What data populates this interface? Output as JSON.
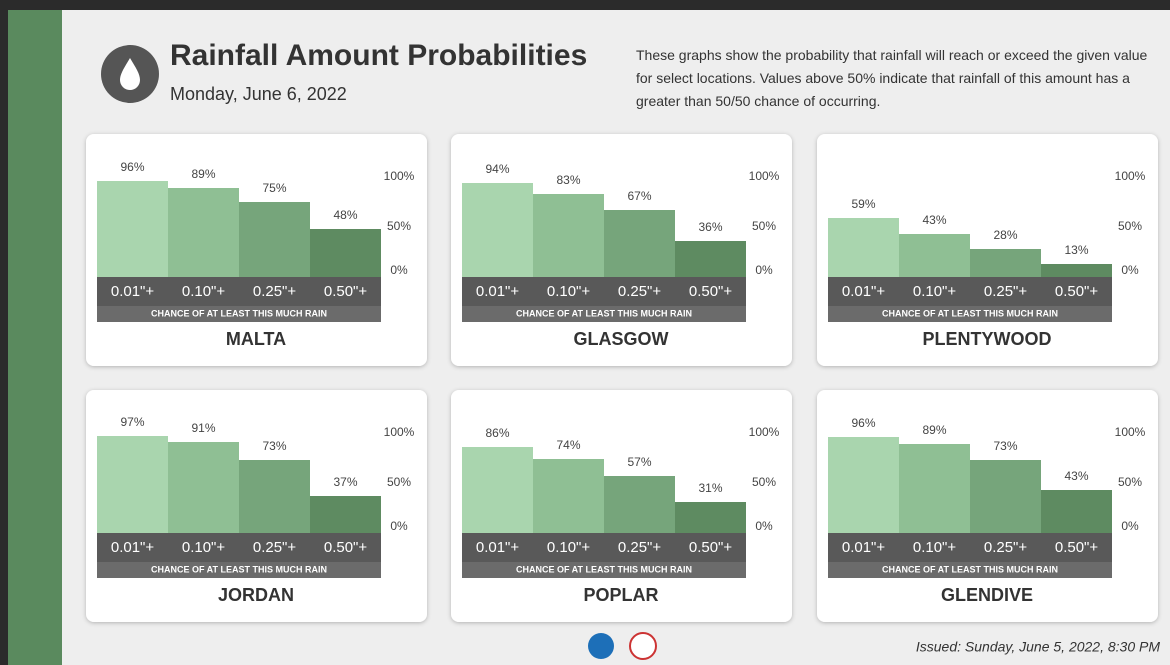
{
  "header": {
    "title": "Rainfall Amount Probabilities",
    "date": "Monday, June 6, 2022",
    "description": "These graphs show the probability that rainfall will reach or exceed the given value for select locations. Values above 50% indicate that rainfall of this amount has a greater than 50/50 chance of occurring."
  },
  "chart_data": [
    {
      "type": "bar",
      "title": "MALTA",
      "xlabel": "CHANCE OF AT LEAST THIS MUCH RAIN",
      "categories": [
        "0.01\"+",
        "0.10\"+",
        "0.25\"+",
        "0.50\"+"
      ],
      "values": [
        96,
        89,
        75,
        48
      ],
      "value_labels": [
        "96%",
        "89%",
        "75%",
        "48%"
      ],
      "colors": [
        "#a9d5ae",
        "#8fbf94",
        "#76a57b",
        "#5e8b61"
      ],
      "ylim": [
        0,
        100
      ],
      "yticks": [
        {
          "value": 0,
          "label": "0%"
        },
        {
          "value": 50,
          "label": "50%"
        },
        {
          "value": 100,
          "label": "100%"
        }
      ]
    },
    {
      "type": "bar",
      "title": "GLASGOW",
      "xlabel": "CHANCE OF AT LEAST THIS MUCH RAIN",
      "categories": [
        "0.01\"+",
        "0.10\"+",
        "0.25\"+",
        "0.50\"+"
      ],
      "values": [
        94,
        83,
        67,
        36
      ],
      "value_labels": [
        "94%",
        "83%",
        "67%",
        "36%"
      ],
      "colors": [
        "#a9d5ae",
        "#8fbf94",
        "#76a57b",
        "#5e8b61"
      ],
      "ylim": [
        0,
        100
      ],
      "yticks": [
        {
          "value": 0,
          "label": "0%"
        },
        {
          "value": 50,
          "label": "50%"
        },
        {
          "value": 100,
          "label": "100%"
        }
      ]
    },
    {
      "type": "bar",
      "title": "PLENTYWOOD",
      "xlabel": "CHANCE OF AT LEAST THIS MUCH RAIN",
      "categories": [
        "0.01\"+",
        "0.10\"+",
        "0.25\"+",
        "0.50\"+"
      ],
      "values": [
        59,
        43,
        28,
        13
      ],
      "value_labels": [
        "59%",
        "43%",
        "28%",
        "13%"
      ],
      "colors": [
        "#a9d5ae",
        "#8fbf94",
        "#76a57b",
        "#5e8b61"
      ],
      "ylim": [
        0,
        100
      ],
      "yticks": [
        {
          "value": 0,
          "label": "0%"
        },
        {
          "value": 50,
          "label": "50%"
        },
        {
          "value": 100,
          "label": "100%"
        }
      ]
    },
    {
      "type": "bar",
      "title": "JORDAN",
      "xlabel": "CHANCE OF AT LEAST THIS MUCH RAIN",
      "categories": [
        "0.01\"+",
        "0.10\"+",
        "0.25\"+",
        "0.50\"+"
      ],
      "values": [
        97,
        91,
        73,
        37
      ],
      "value_labels": [
        "97%",
        "91%",
        "73%",
        "37%"
      ],
      "colors": [
        "#a9d5ae",
        "#8fbf94",
        "#76a57b",
        "#5e8b61"
      ],
      "ylim": [
        0,
        100
      ],
      "yticks": [
        {
          "value": 0,
          "label": "0%"
        },
        {
          "value": 50,
          "label": "50%"
        },
        {
          "value": 100,
          "label": "100%"
        }
      ]
    },
    {
      "type": "bar",
      "title": "POPLAR",
      "xlabel": "CHANCE OF AT LEAST THIS MUCH RAIN",
      "categories": [
        "0.01\"+",
        "0.10\"+",
        "0.25\"+",
        "0.50\"+"
      ],
      "values": [
        86,
        74,
        57,
        31
      ],
      "value_labels": [
        "86%",
        "74%",
        "57%",
        "31%"
      ],
      "colors": [
        "#a9d5ae",
        "#8fbf94",
        "#76a57b",
        "#5e8b61"
      ],
      "ylim": [
        0,
        100
      ],
      "yticks": [
        {
          "value": 0,
          "label": "0%"
        },
        {
          "value": 50,
          "label": "50%"
        },
        {
          "value": 100,
          "label": "100%"
        }
      ]
    },
    {
      "type": "bar",
      "title": "GLENDIVE",
      "xlabel": "CHANCE OF AT LEAST THIS MUCH RAIN",
      "categories": [
        "0.01\"+",
        "0.10\"+",
        "0.25\"+",
        "0.50\"+"
      ],
      "values": [
        96,
        89,
        73,
        43
      ],
      "value_labels": [
        "96%",
        "89%",
        "73%",
        "43%"
      ],
      "colors": [
        "#a9d5ae",
        "#8fbf94",
        "#76a57b",
        "#5e8b61"
      ],
      "ylim": [
        0,
        100
      ],
      "yticks": [
        {
          "value": 0,
          "label": "0%"
        },
        {
          "value": 50,
          "label": "50%"
        },
        {
          "value": 100,
          "label": "100%"
        }
      ]
    }
  ],
  "footer": {
    "issued": "Issued: Sunday, June 5, 2022, 8:30 PM"
  }
}
